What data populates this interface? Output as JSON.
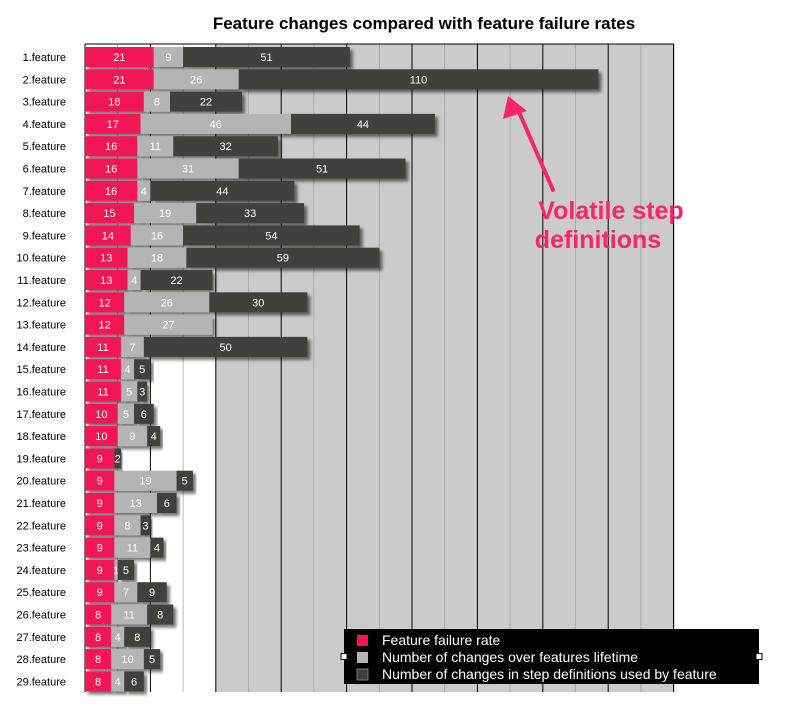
{
  "chart_data": {
    "type": "bar",
    "stacked": true,
    "orientation": "horizontal",
    "title": "Feature changes compared with feature failure rates",
    "categories": [
      "1.feature",
      "2.feature",
      "3.feature",
      "4.feature",
      "5.feature",
      "6.feature",
      "7.feature",
      "8.feature",
      "9.feature",
      "10.feature",
      "11.feature",
      "12.feature",
      "13.feature",
      "14.feature",
      "15.feature",
      "16.feature",
      "17.feature",
      "18.feature",
      "19.feature",
      "20.feature",
      "21.feature",
      "22.feature",
      "23.feature",
      "24.feature",
      "25.feature",
      "26.feature",
      "27.feature",
      "28.feature",
      "29.feature"
    ],
    "series": [
      {
        "name": "Feature failure rate",
        "color": "#f21554",
        "values": [
          21,
          21,
          18,
          17,
          16,
          16,
          16,
          15,
          14,
          13,
          13,
          12,
          12,
          11,
          11,
          11,
          10,
          10,
          9,
          9,
          9,
          9,
          9,
          9,
          9,
          8,
          8,
          8,
          8
        ]
      },
      {
        "name": "Number of changes over features lifetime",
        "color": "#b4b4b4",
        "values": [
          9,
          26,
          8,
          46,
          11,
          31,
          4,
          19,
          16,
          18,
          4,
          26,
          27,
          7,
          4,
          5,
          5,
          9,
          0,
          19,
          13,
          8,
          11,
          1,
          7,
          11,
          4,
          10,
          4
        ]
      },
      {
        "name": "Number of changes in step definitions used by feature",
        "color": "#3f3f3c",
        "values": [
          51,
          110,
          22,
          44,
          32,
          51,
          44,
          33,
          54,
          59,
          22,
          30,
          0,
          50,
          5,
          3,
          6,
          4,
          2,
          5,
          6,
          3,
          4,
          5,
          9,
          8,
          8,
          5,
          6
        ]
      }
    ],
    "xlim": [
      0,
      180
    ],
    "grid": true,
    "legend": "bottom-right",
    "annotation": {
      "text_lines": [
        "Volatile step",
        "definitions"
      ],
      "color": "#f7266a",
      "points_to": "2.feature"
    }
  }
}
